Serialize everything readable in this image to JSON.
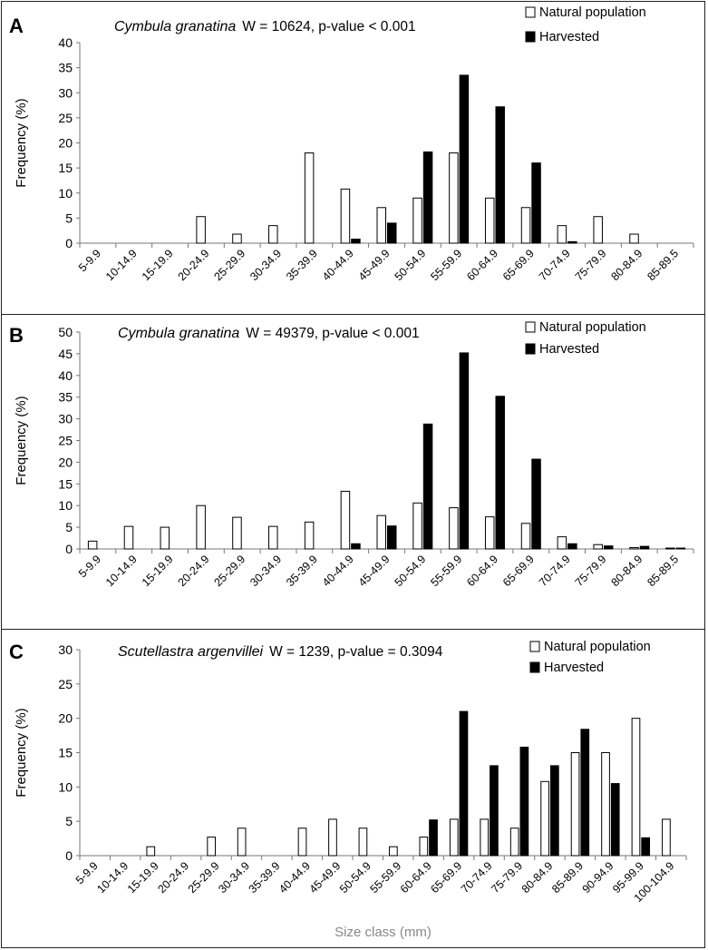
{
  "chart_data": [
    {
      "type": "bar",
      "panel_label": "A",
      "species": "Cymbula granatina",
      "stats": "W = 10624,  p-value < 0.001",
      "ylabel": "Frequency (%)",
      "xlabel": "",
      "ylim": [
        0,
        40
      ],
      "yticks": [
        0,
        5,
        10,
        15,
        20,
        25,
        30,
        35,
        40
      ],
      "legend": [
        "Natural population",
        "Harvested"
      ],
      "categories": [
        "5-9.9",
        "10-14.9",
        "15-19.9",
        "20-24.9",
        "25-29.9",
        "30-34.9",
        "35-39.9",
        "40-44.9",
        "45-49.9",
        "50-54.9",
        "55-59.9",
        "60-64.9",
        "65-69.9",
        "70-74.9",
        "75-79.9",
        "80-84.9",
        "85-89.5"
      ],
      "series": [
        {
          "name": "Natural population",
          "color": "#ffffff",
          "values": [
            0,
            0,
            0,
            5.3,
            1.8,
            3.5,
            18,
            10.8,
            7.1,
            9,
            18,
            9,
            7.1,
            3.5,
            5.3,
            1.8,
            0
          ]
        },
        {
          "name": "Harvested",
          "color": "#000000",
          "values": [
            0,
            0,
            0,
            0,
            0,
            0,
            0,
            0.8,
            4,
            18.2,
            33.5,
            27.2,
            16,
            0.3,
            0,
            0,
            0
          ]
        }
      ]
    },
    {
      "type": "bar",
      "panel_label": "B",
      "species": "Cymbula granatina",
      "stats": "W = 49379,  p-value < 0.001",
      "ylabel": "Frequency (%)",
      "xlabel": "",
      "ylim": [
        0,
        50
      ],
      "yticks": [
        0,
        5,
        10,
        15,
        20,
        25,
        30,
        35,
        40,
        45,
        50
      ],
      "legend": [
        "Natural population",
        "Harvested"
      ],
      "categories": [
        "5-9.9",
        "10-14.9",
        "15-19.9",
        "20-24.9",
        "25-29.9",
        "30-34.9",
        "35-39.9",
        "40-44.9",
        "45-49.9",
        "50-54.9",
        "55-59.9",
        "60-64.9",
        "65-69.9",
        "70-74.9",
        "75-79.9",
        "80-84.9",
        "85-89.5"
      ],
      "series": [
        {
          "name": "Natural population",
          "color": "#ffffff",
          "values": [
            1.8,
            5.2,
            5,
            10,
            7.3,
            5.2,
            6.2,
            13.3,
            7.7,
            10.6,
            9.5,
            7.4,
            5.9,
            2.8,
            1,
            0.3,
            0.2
          ]
        },
        {
          "name": "Harvested",
          "color": "#000000",
          "values": [
            0,
            0,
            0,
            0,
            0,
            0,
            0,
            1.2,
            5.3,
            28.8,
            45.2,
            35.2,
            20.7,
            1.2,
            0.7,
            0.6,
            0.2
          ]
        }
      ]
    },
    {
      "type": "bar",
      "panel_label": "C",
      "species": "Scutellastra argenvillei",
      "stats": "W = 1239,  p-value = 0.3094",
      "ylabel": "Frequency (%)",
      "xlabel": "Size class (mm)",
      "ylim": [
        0,
        30
      ],
      "yticks": [
        0,
        5,
        10,
        15,
        20,
        25,
        30
      ],
      "legend": [
        "Natural population",
        "Harvested"
      ],
      "categories": [
        "5-9.9",
        "10-14.9",
        "15-19.9",
        "20-24.9",
        "25-29.9",
        "30-34.9",
        "35-39.9",
        "40-44.9",
        "45-49.9",
        "50-54.9",
        "55-59.9",
        "60-64.9",
        "65-69.9",
        "70-74.9",
        "75-79.9",
        "80-84.9",
        "85-89.9",
        "90-94.9",
        "95-99.9",
        "100-104.9"
      ],
      "series": [
        {
          "name": "Natural population",
          "color": "#ffffff",
          "values": [
            0,
            0,
            1.3,
            0,
            2.7,
            4,
            0,
            4,
            5.3,
            4,
            1.3,
            2.7,
            5.3,
            5.3,
            4,
            10.8,
            15,
            15,
            20,
            5.3
          ]
        },
        {
          "name": "Harvested",
          "color": "#000000",
          "values": [
            0,
            0,
            0,
            0,
            0,
            0,
            0,
            0,
            0,
            0,
            0,
            5.2,
            21,
            13.1,
            15.8,
            13.1,
            18.4,
            10.5,
            2.6,
            0
          ]
        }
      ]
    }
  ]
}
